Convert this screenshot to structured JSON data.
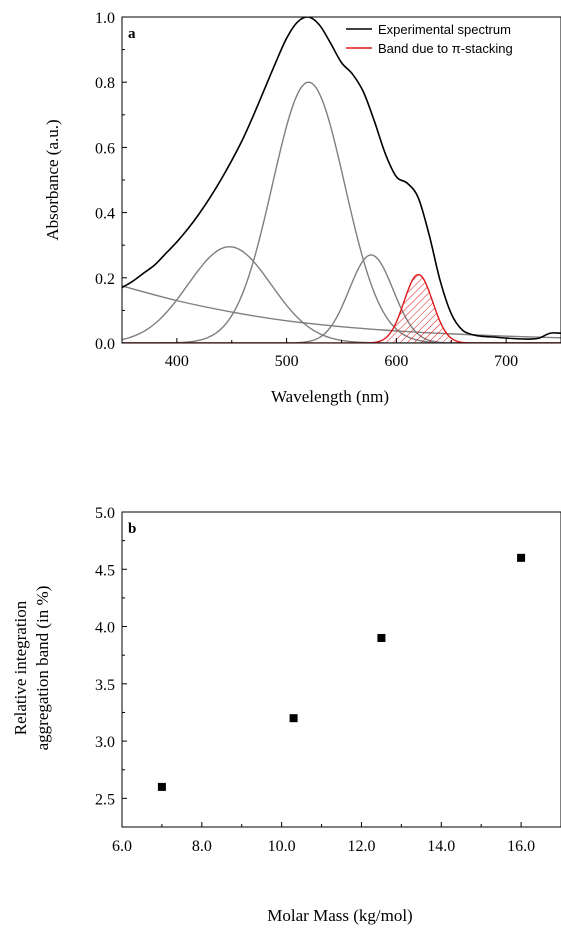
{
  "chart_data": [
    {
      "type": "line",
      "panel_label": "a",
      "xlabel": "Wavelength (nm)",
      "ylabel": "Absorbance (a.u.)",
      "xlim": [
        350,
        750
      ],
      "ylim": [
        0,
        1.0
      ],
      "xticks": [
        400,
        500,
        600,
        700
      ],
      "yticks": [
        0.0,
        0.2,
        0.4,
        0.6,
        0.8,
        1.0
      ],
      "ytick_labels": [
        "0.0",
        "0.2",
        "0.4",
        "0.6",
        "0.8",
        "1.0"
      ],
      "legend": {
        "position": "top-right",
        "entries": [
          {
            "label": "Experimental spectrum",
            "color": "#000000"
          },
          {
            "label": "Band due to π-stacking",
            "color": "#e0191b"
          }
        ]
      },
      "series": [
        {
          "name": "Experimental spectrum",
          "color": "#000000",
          "x": [
            350,
            360,
            370,
            380,
            390,
            400,
            410,
            420,
            430,
            440,
            450,
            460,
            470,
            480,
            490,
            500,
            510,
            520,
            530,
            540,
            550,
            560,
            570,
            580,
            590,
            600,
            610,
            620,
            630,
            640,
            650,
            660,
            670,
            680,
            690,
            700,
            710,
            720,
            730,
            740,
            750
          ],
          "y": [
            0.17,
            0.19,
            0.215,
            0.24,
            0.275,
            0.31,
            0.35,
            0.395,
            0.445,
            0.5,
            0.56,
            0.625,
            0.7,
            0.78,
            0.86,
            0.935,
            0.985,
            1.0,
            0.975,
            0.92,
            0.86,
            0.825,
            0.77,
            0.68,
            0.58,
            0.51,
            0.49,
            0.445,
            0.33,
            0.19,
            0.09,
            0.04,
            0.025,
            0.02,
            0.018,
            0.015,
            0.013,
            0.012,
            0.015,
            0.03,
            0.03
          ]
        },
        {
          "name": "Gaussian component 1",
          "color": "#7f7f7f",
          "shape": "gaussian",
          "amplitude": 0.295,
          "center": 448,
          "sigma": 38
        },
        {
          "name": "Gaussian component 2",
          "color": "#7f7f7f",
          "shape": "gaussian",
          "amplitude": 0.8,
          "center": 520,
          "sigma": 33
        },
        {
          "name": "Gaussian component 3",
          "color": "#7f7f7f",
          "shape": "gaussian",
          "amplitude": 0.27,
          "center": 577,
          "sigma": 20
        },
        {
          "name": "Background component",
          "color": "#7f7f7f",
          "x": [
            350,
            400,
            450,
            500,
            550,
            600,
            650,
            700,
            750
          ],
          "y": [
            0.175,
            0.13,
            0.095,
            0.068,
            0.05,
            0.037,
            0.028,
            0.021,
            0.016
          ]
        },
        {
          "name": "Band due to π-stacking",
          "color": "#e0191b",
          "shape": "gaussian",
          "amplitude": 0.21,
          "center": 620,
          "sigma": 13,
          "fill": "hatched"
        }
      ]
    },
    {
      "type": "scatter",
      "panel_label": "b",
      "xlabel": "Molar Mass (kg/mol)",
      "ylabel_lines": [
        "Relative integration",
        "aggregation band (in %)"
      ],
      "xlim": [
        6.0,
        17.0
      ],
      "ylim": [
        2.25,
        5.0
      ],
      "xticks": [
        6.0,
        8.0,
        10.0,
        12.0,
        14.0,
        16.0
      ],
      "xtick_labels": [
        "6.0",
        "8.0",
        "10.0",
        "12.0",
        "14.0",
        "16.0"
      ],
      "yticks": [
        2.5,
        3.0,
        3.5,
        4.0,
        4.5,
        5.0
      ],
      "ytick_labels": [
        "2.5",
        "3.0",
        "3.5",
        "4.0",
        "4.5",
        "5.0"
      ],
      "series": [
        {
          "name": "Relative integration",
          "color": "#000000",
          "marker": "square",
          "x": [
            7.0,
            10.3,
            12.5,
            16.0
          ],
          "y": [
            2.6,
            3.2,
            3.9,
            4.6
          ]
        }
      ]
    }
  ]
}
